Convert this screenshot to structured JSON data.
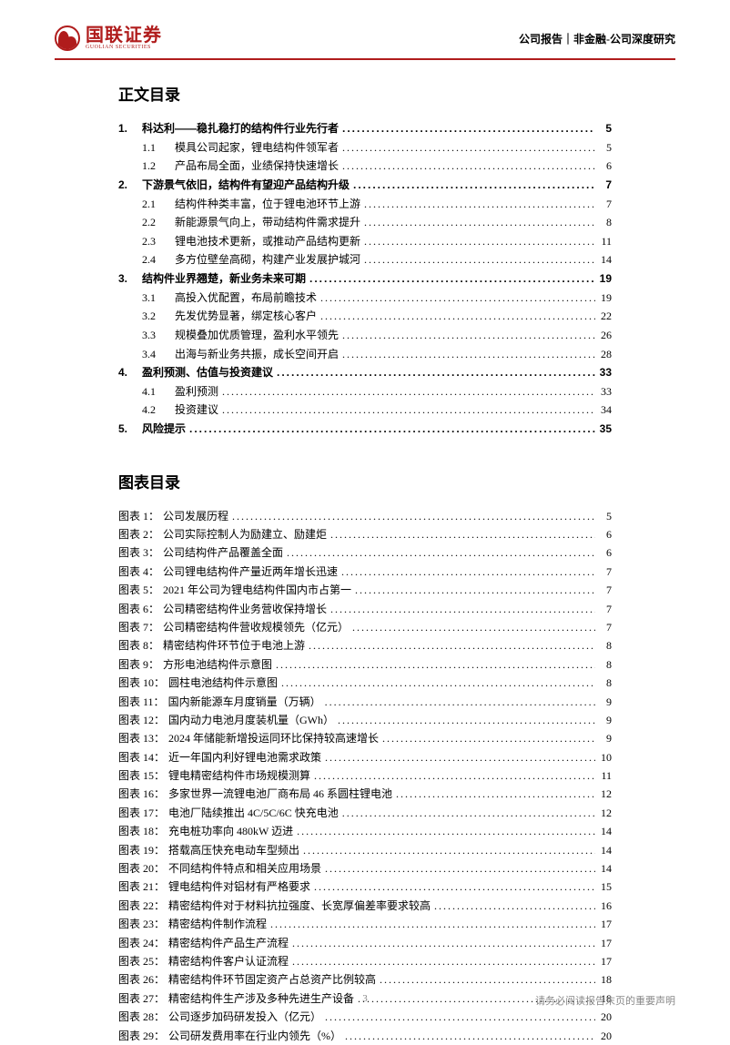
{
  "brand": {
    "cn": "国联证券",
    "en": "GUOLIAN SECURITIES",
    "color": "#b01c1c"
  },
  "header_right": "公司报告｜非金融-公司深度研究",
  "toc_title": "正文目录",
  "fig_title": "图表目录",
  "dots": "................................................................................................................................",
  "toc": [
    {
      "level": 1,
      "num": "1.",
      "text": "科达利——稳扎稳打的结构件行业先行者",
      "page": "5"
    },
    {
      "level": 2,
      "num": "1.1",
      "text": "模具公司起家，锂电结构件领军者",
      "page": "5"
    },
    {
      "level": 2,
      "num": "1.2",
      "text": "产品布局全面，业绩保持快速增长",
      "page": "6"
    },
    {
      "level": 1,
      "num": "2.",
      "text": "下游景气依旧，结构件有望迎产品结构升级",
      "page": "7"
    },
    {
      "level": 2,
      "num": "2.1",
      "text": "结构件种类丰富，位于锂电池环节上游",
      "page": "7"
    },
    {
      "level": 2,
      "num": "2.2",
      "text": "新能源景气向上，带动结构件需求提升",
      "page": "8"
    },
    {
      "level": 2,
      "num": "2.3",
      "text": "锂电池技术更新，或推动产品结构更新",
      "page": "11"
    },
    {
      "level": 2,
      "num": "2.4",
      "text": "多方位壁垒高砌，构建产业发展护城河",
      "page": "14"
    },
    {
      "level": 1,
      "num": "3.",
      "text": "结构件业界翘楚，新业务未来可期",
      "page": "19"
    },
    {
      "level": 2,
      "num": "3.1",
      "text": "高投入优配置，布局前瞻技术",
      "page": "19"
    },
    {
      "level": 2,
      "num": "3.2",
      "text": "先发优势显著，绑定核心客户",
      "page": "22"
    },
    {
      "level": 2,
      "num": "3.3",
      "text": "规模叠加优质管理，盈利水平领先",
      "page": "26"
    },
    {
      "level": 2,
      "num": "3.4",
      "text": "出海与新业务共振，成长空间开启",
      "page": "28"
    },
    {
      "level": 1,
      "num": "4.",
      "text": "盈利预测、估值与投资建议",
      "page": "33"
    },
    {
      "level": 2,
      "num": "4.1",
      "text": "盈利预测",
      "page": "33"
    },
    {
      "level": 2,
      "num": "4.2",
      "text": "投资建议",
      "page": "34"
    },
    {
      "level": 1,
      "num": "5.",
      "text": "风险提示",
      "page": "35"
    }
  ],
  "figures": [
    {
      "n": "1",
      "title": "公司发展历程",
      "page": "5"
    },
    {
      "n": "2",
      "title": "公司实际控制人为励建立、励建炬",
      "page": "6"
    },
    {
      "n": "3",
      "title": "公司结构件产品覆盖全面",
      "page": "6"
    },
    {
      "n": "4",
      "title": "公司锂电结构件产量近两年增长迅速",
      "page": "7"
    },
    {
      "n": "5",
      "title": "2021 年公司为锂电结构件国内市占第一",
      "page": "7"
    },
    {
      "n": "6",
      "title": "公司精密结构件业务营收保持增长",
      "page": "7"
    },
    {
      "n": "7",
      "title": "公司精密结构件营收规模领先（亿元）",
      "page": "7"
    },
    {
      "n": "8",
      "title": "精密结构件环节位于电池上游",
      "page": "8"
    },
    {
      "n": "9",
      "title": "方形电池结构件示意图",
      "page": "8"
    },
    {
      "n": "10",
      "title": "圆柱电池结构件示意图",
      "page": "8"
    },
    {
      "n": "11",
      "title": "国内新能源车月度销量（万辆）",
      "page": "9"
    },
    {
      "n": "12",
      "title": "国内动力电池月度装机量（GWh）",
      "page": "9"
    },
    {
      "n": "13",
      "title": "2024 年储能新增投运同环比保持较高速增长",
      "page": "9"
    },
    {
      "n": "14",
      "title": "近一年国内利好锂电池需求政策",
      "page": "10"
    },
    {
      "n": "15",
      "title": "锂电精密结构件市场规模测算",
      "page": "11"
    },
    {
      "n": "16",
      "title": "多家世界一流锂电池厂商布局 46 系圆柱锂电池",
      "page": "12"
    },
    {
      "n": "17",
      "title": "电池厂陆续推出 4C/5C/6C 快充电池",
      "page": "12"
    },
    {
      "n": "18",
      "title": "充电桩功率向 480kW 迈进",
      "page": "14"
    },
    {
      "n": "19",
      "title": "搭载高压快充电动车型频出",
      "page": "14"
    },
    {
      "n": "20",
      "title": "不同结构件特点和相关应用场景",
      "page": "14"
    },
    {
      "n": "21",
      "title": "锂电结构件对铝材有严格要求",
      "page": "15"
    },
    {
      "n": "22",
      "title": "精密结构件对于材料抗拉强度、长宽厚偏差率要求较高",
      "page": "16"
    },
    {
      "n": "23",
      "title": "精密结构件制作流程",
      "page": "17"
    },
    {
      "n": "24",
      "title": "精密结构件产品生产流程",
      "page": "17"
    },
    {
      "n": "25",
      "title": "精密结构件客户认证流程",
      "page": "17"
    },
    {
      "n": "26",
      "title": "精密结构件环节固定资产占总资产比例较高",
      "page": "18"
    },
    {
      "n": "27",
      "title": "精密结构件生产涉及多种先进生产设备",
      "page": "18"
    },
    {
      "n": "28",
      "title": "公司逐步加码研发投入（亿元）",
      "page": "20"
    },
    {
      "n": "29",
      "title": "公司研发费用率在行业内领先（%）",
      "page": "20"
    }
  ],
  "fig_prefix": "图表 ",
  "fig_colon": "：",
  "footer": {
    "page": "3",
    "disclaimer": "请务必阅读报告末页的重要声明"
  }
}
